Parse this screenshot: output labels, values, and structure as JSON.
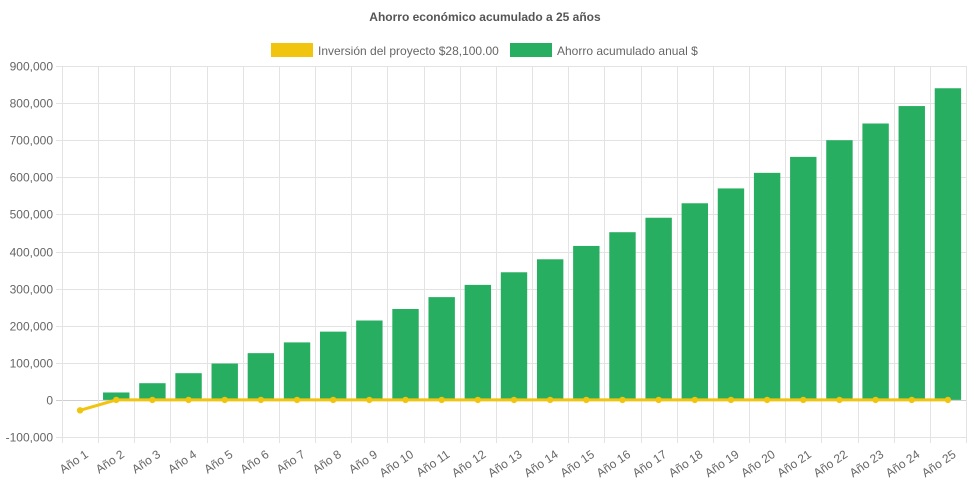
{
  "chart_data": {
    "type": "bar",
    "title": "Ahorro económico acumulado a 25 años",
    "legend_placement": "top",
    "grid": true,
    "xlabel": "",
    "ylabel": "",
    "ylim": [
      -100000,
      900000
    ],
    "y_ticks": [
      900000,
      800000,
      700000,
      600000,
      500000,
      400000,
      300000,
      200000,
      100000,
      0,
      -100000
    ],
    "y_tick_labels": [
      "900,000",
      "800,000",
      "700,000",
      "600,000",
      "500,000",
      "400,000",
      "300,000",
      "200,000",
      "100,000",
      "0",
      "-100,000"
    ],
    "categories": [
      "Año 1",
      "Año 2",
      "Año 3",
      "Año 4",
      "Año 5",
      "Año 6",
      "Año 7",
      "Año 8",
      "Año 9",
      "Año 10",
      "Año 11",
      "Año 12",
      "Año 13",
      "Año 14",
      "Año 15",
      "Año 16",
      "Año 17",
      "Año 18",
      "Año 19",
      "Año 20",
      "Año 21",
      "Año 22",
      "Año 23",
      "Año 24",
      "Año 25"
    ],
    "series": [
      {
        "name": "Inversión del proyecto $28,100.00",
        "type": "line",
        "color": "#f1c40f",
        "values": [
          -28100,
          0,
          0,
          0,
          0,
          0,
          0,
          0,
          0,
          0,
          0,
          0,
          0,
          0,
          0,
          0,
          0,
          0,
          0,
          0,
          0,
          0,
          0,
          0,
          0
        ]
      },
      {
        "name": "Ahorro acumulado anual $",
        "type": "bar",
        "color": "#27ae60",
        "values": [
          0,
          20000,
          45000,
          72000,
          98000,
          126000,
          155000,
          184000,
          214000,
          245000,
          277000,
          310000,
          344000,
          379000,
          415000,
          452000,
          491000,
          530000,
          570000,
          612000,
          655000,
          700000,
          745000,
          792000,
          840000
        ]
      }
    ]
  }
}
